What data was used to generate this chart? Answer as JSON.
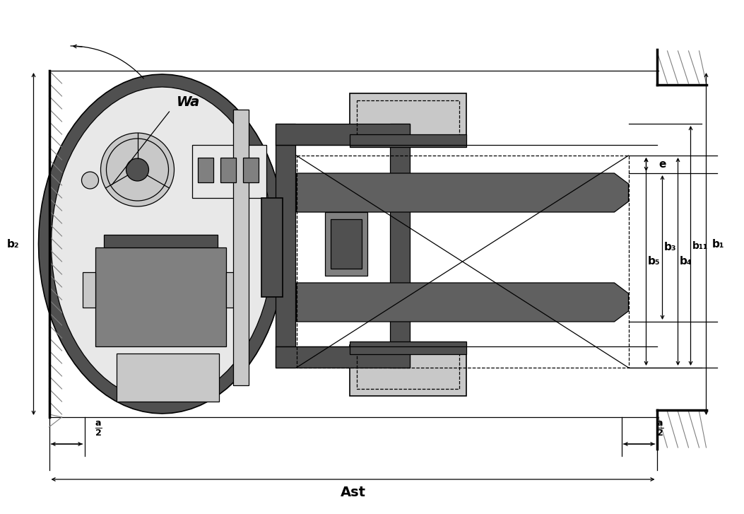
{
  "bg_color": "#ffffff",
  "line_color": "#000000",
  "dark_gray": "#505050",
  "mid_gray": "#808080",
  "light_gray": "#c8c8c8",
  "lighter_gray": "#e8e8e8",
  "body_dark": "#585858",
  "figsize": [
    10.24,
    7.07
  ],
  "dpi": 100,
  "labels": {
    "Wa": "Wa",
    "b2": "b₂",
    "b5": "b₅",
    "b3": "b₃",
    "b4": "b₄",
    "b11": "b₁₁",
    "b1": "b₁",
    "e": "e",
    "Ast": "Ast"
  }
}
